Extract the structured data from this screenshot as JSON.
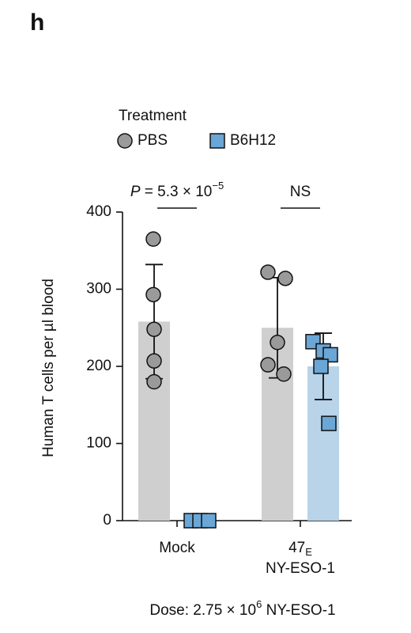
{
  "chart_data": {
    "type": "bar_dot",
    "panel_label": "h",
    "legend_title": "Treatment",
    "categories": [
      "Mock",
      [
        "47",
        "E",
        "NY-ESO-1"
      ]
    ],
    "ylabel": "Human T cells per µl blood",
    "ylim": [
      0,
      400
    ],
    "yticks": [
      0,
      100,
      200,
      300,
      400
    ],
    "series": [
      {
        "name": "PBS",
        "color": "#cfcfcf",
        "marker_color": "#9a9a9a",
        "marker": "circle",
        "values": [
          258,
          250
        ],
        "errors": [
          74,
          65
        ],
        "points": [
          [
            365,
            293,
            248,
            207,
            180
          ],
          [
            322,
            314,
            231,
            202,
            190
          ]
        ]
      },
      {
        "name": "B6H12",
        "color": "#b9d3e8",
        "marker_color": "#6aa6d6",
        "marker": "square",
        "values": [
          0,
          200
        ],
        "errors": [
          0,
          43
        ],
        "points": [
          [
            0,
            0,
            0
          ],
          [
            232,
            220,
            215,
            200,
            126
          ]
        ]
      }
    ],
    "annotations": [
      {
        "parts": [
          "P",
          " = 5.3 × 10",
          "−5"
        ],
        "category": 0
      },
      {
        "parts": [
          "NS"
        ],
        "category": 1
      }
    ],
    "footnote": [
      "Dose: 2.75 × 10",
      "6",
      " NY-ESO-1"
    ]
  }
}
